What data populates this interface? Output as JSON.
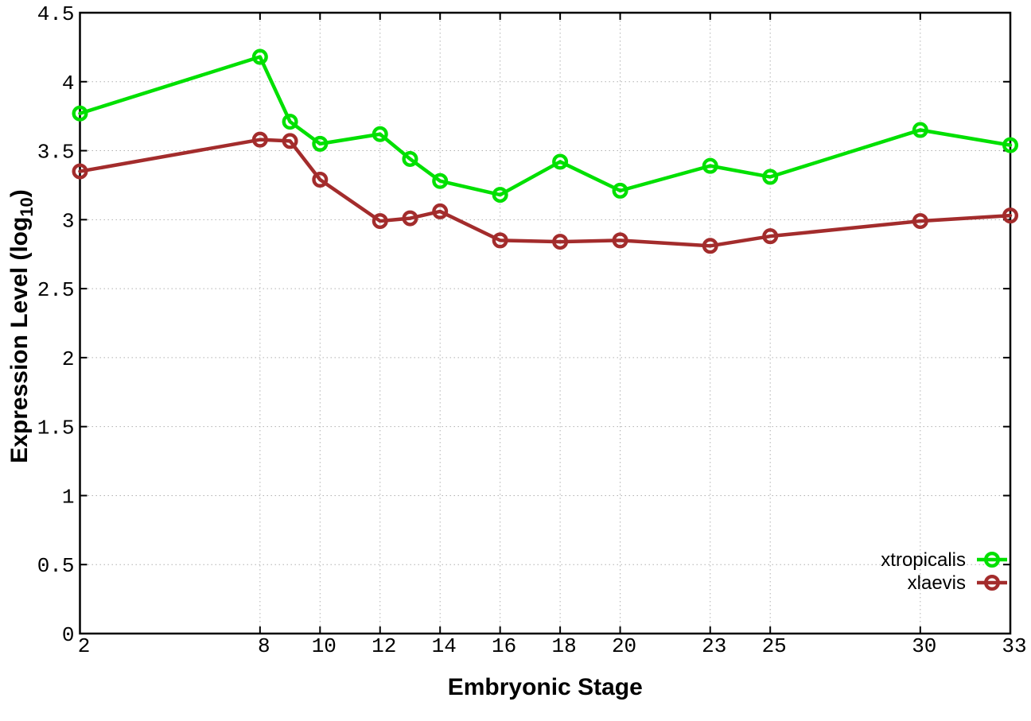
{
  "figure": {
    "background_color": "#ffffff"
  },
  "chart_data": {
    "type": "line",
    "title": "",
    "xlabel": "Embryonic Stage",
    "ylabel": "Expression Level (log10)",
    "ylabel_main": "Expression Level (log",
    "ylabel_subscript": "10",
    "ylabel_end": ")",
    "xlim": [
      2,
      33
    ],
    "ylim": [
      0,
      4.5
    ],
    "xticks": [
      2,
      8,
      10,
      12,
      14,
      16,
      18,
      20,
      23,
      25,
      30,
      33
    ],
    "yticks": [
      0,
      0.5,
      1,
      1.5,
      2,
      2.5,
      3,
      3.5,
      4,
      4.5
    ],
    "grid": true,
    "grid_color": "#b0b0b0",
    "border_color": "#000000",
    "legend_position": "inside-bottom-right",
    "marker": "open-circle",
    "x": [
      2,
      8,
      9,
      10,
      12,
      13,
      14,
      16,
      18,
      20,
      23,
      25,
      30,
      33
    ],
    "series": [
      {
        "name": "xtropicalis",
        "color": "#00e000",
        "values": [
          3.77,
          4.18,
          3.71,
          3.55,
          3.62,
          3.44,
          3.28,
          3.18,
          3.42,
          3.21,
          3.39,
          3.31,
          3.65,
          3.54
        ]
      },
      {
        "name": "xlaevis",
        "color": "#a32c2c",
        "values": [
          3.35,
          3.58,
          3.57,
          3.29,
          2.99,
          3.01,
          3.06,
          2.85,
          2.84,
          2.85,
          2.81,
          2.88,
          2.99,
          3.03
        ]
      }
    ]
  }
}
